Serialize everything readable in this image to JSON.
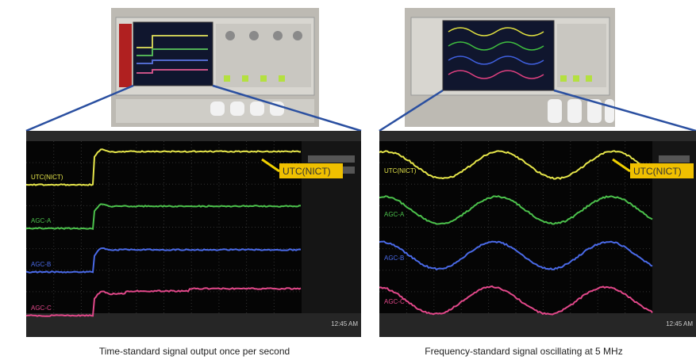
{
  "left": {
    "screen_labels": [
      "UTC(NICT)",
      "AGC-A",
      "AGC-B",
      "AGC-C"
    ],
    "callout": "UTC(NICT)",
    "time": "12:45 AM",
    "caption": "Time-standard signal output once per second"
  },
  "right": {
    "screen_labels": [
      "UTC(NICT)",
      "AGC-A",
      "AGC-B",
      "AGC-C"
    ],
    "callout": "UTC(NICT)",
    "time": "12:45 AM",
    "caption": "Frequency-standard signal oscillating at 5 MHz"
  }
}
